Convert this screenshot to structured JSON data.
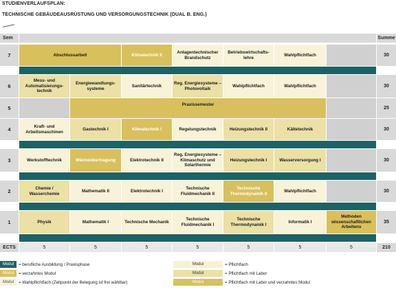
{
  "header": {
    "title": "STUDIENVERLAUFSPLAN:",
    "subtitle": "TECHNISCHE GEBÄUDEAUSRÜSTUNG UND VERSORGUNGSTECHNIK (DUAL B. ENG.)"
  },
  "table": {
    "col_sem": "Sem",
    "col_sum": "Summe",
    "semesters": [
      {
        "sem": "7",
        "sum": "30",
        "cells": [
          "Abschlussarbeit",
          "Klimatechnik II",
          "Anlagentechnischer Brandschutz",
          "Betriebswirtschafts-lehre",
          "Wahlpflichtfach"
        ]
      },
      {
        "sem": "6",
        "sum": "30",
        "cells": [
          "Mess- und Automatisierungs-technik",
          "Energiewandlungs-systeme",
          "Sanitärtechnik",
          "Reg. Energiesysteme – Photovoltaik",
          "Wahlpflichtfach",
          "Wahlpflichtfach"
        ]
      },
      {
        "sem": "5",
        "sum": "25",
        "cells": [
          "Praxissemester"
        ]
      },
      {
        "sem": "4",
        "sum": "30",
        "cells": [
          "Kraft- und Arbeitsmaschinen",
          "Gastechnik I",
          "Klimatechnik I",
          "Regelungstechnik",
          "Heizungstechnik II",
          "Kältetechnik"
        ]
      },
      {
        "sem": "3",
        "sum": "30",
        "cells": [
          "Werkstofftechnik",
          "Wärmeübertragung",
          "Elektrotechnik II",
          "Reg. Energiesysteme – Klimaschutz und Solarthermie",
          "Heizungstechnik I",
          "Wasserversorgung I"
        ]
      },
      {
        "sem": "2",
        "sum": "30",
        "cells": [
          "Chemie / Wasserchemie",
          "Mathematik II",
          "Elektrotechnik I",
          "Technische Fluidmechanik II",
          "Technische Thermodynamik II",
          "Wahlpflichtfach"
        ]
      },
      {
        "sem": "1",
        "sum": "35",
        "cells": [
          "Physik",
          "Mathematik I",
          "Technische Mechanik",
          "Technische Fluidmechanik I",
          "Technische Thermodynamik I",
          "Informatik I",
          "Methoden wissenschaftlichen Arbeitens"
        ]
      }
    ],
    "ects_label": "ECTS",
    "ects": [
      "5",
      "5",
      "5",
      "5",
      "5",
      "5",
      "5"
    ],
    "ects_sum": "210"
  },
  "legend": {
    "box_label": "Modul",
    "items": [
      {
        "text": "= berufliche Ausbildung / Praxisphase",
        "color": "#1e6266"
      },
      {
        "text": "= verzahntes Modul",
        "color": "#d8c05c"
      },
      {
        "text": "= Wahlpflichtfach (Zeitpunkt der Belegung ist frei wählbar)",
        "color": "#f8f2d8"
      },
      {
        "text": "= Pflichtfach",
        "color": "#f8f2d8"
      },
      {
        "text": "= Pflichtfach mit Labor",
        "color": "#ebe0a6"
      },
      {
        "text": "= Pflichtfach mit Labor und verzahntes Modul",
        "color": "#d8c05c"
      }
    ]
  },
  "colors": {
    "band": "#1e6266",
    "pflicht": "#f8f2d8",
    "labor": "#ebe0a6",
    "verzahnt": "#d8c05c",
    "grey": "#d0d0d0"
  }
}
